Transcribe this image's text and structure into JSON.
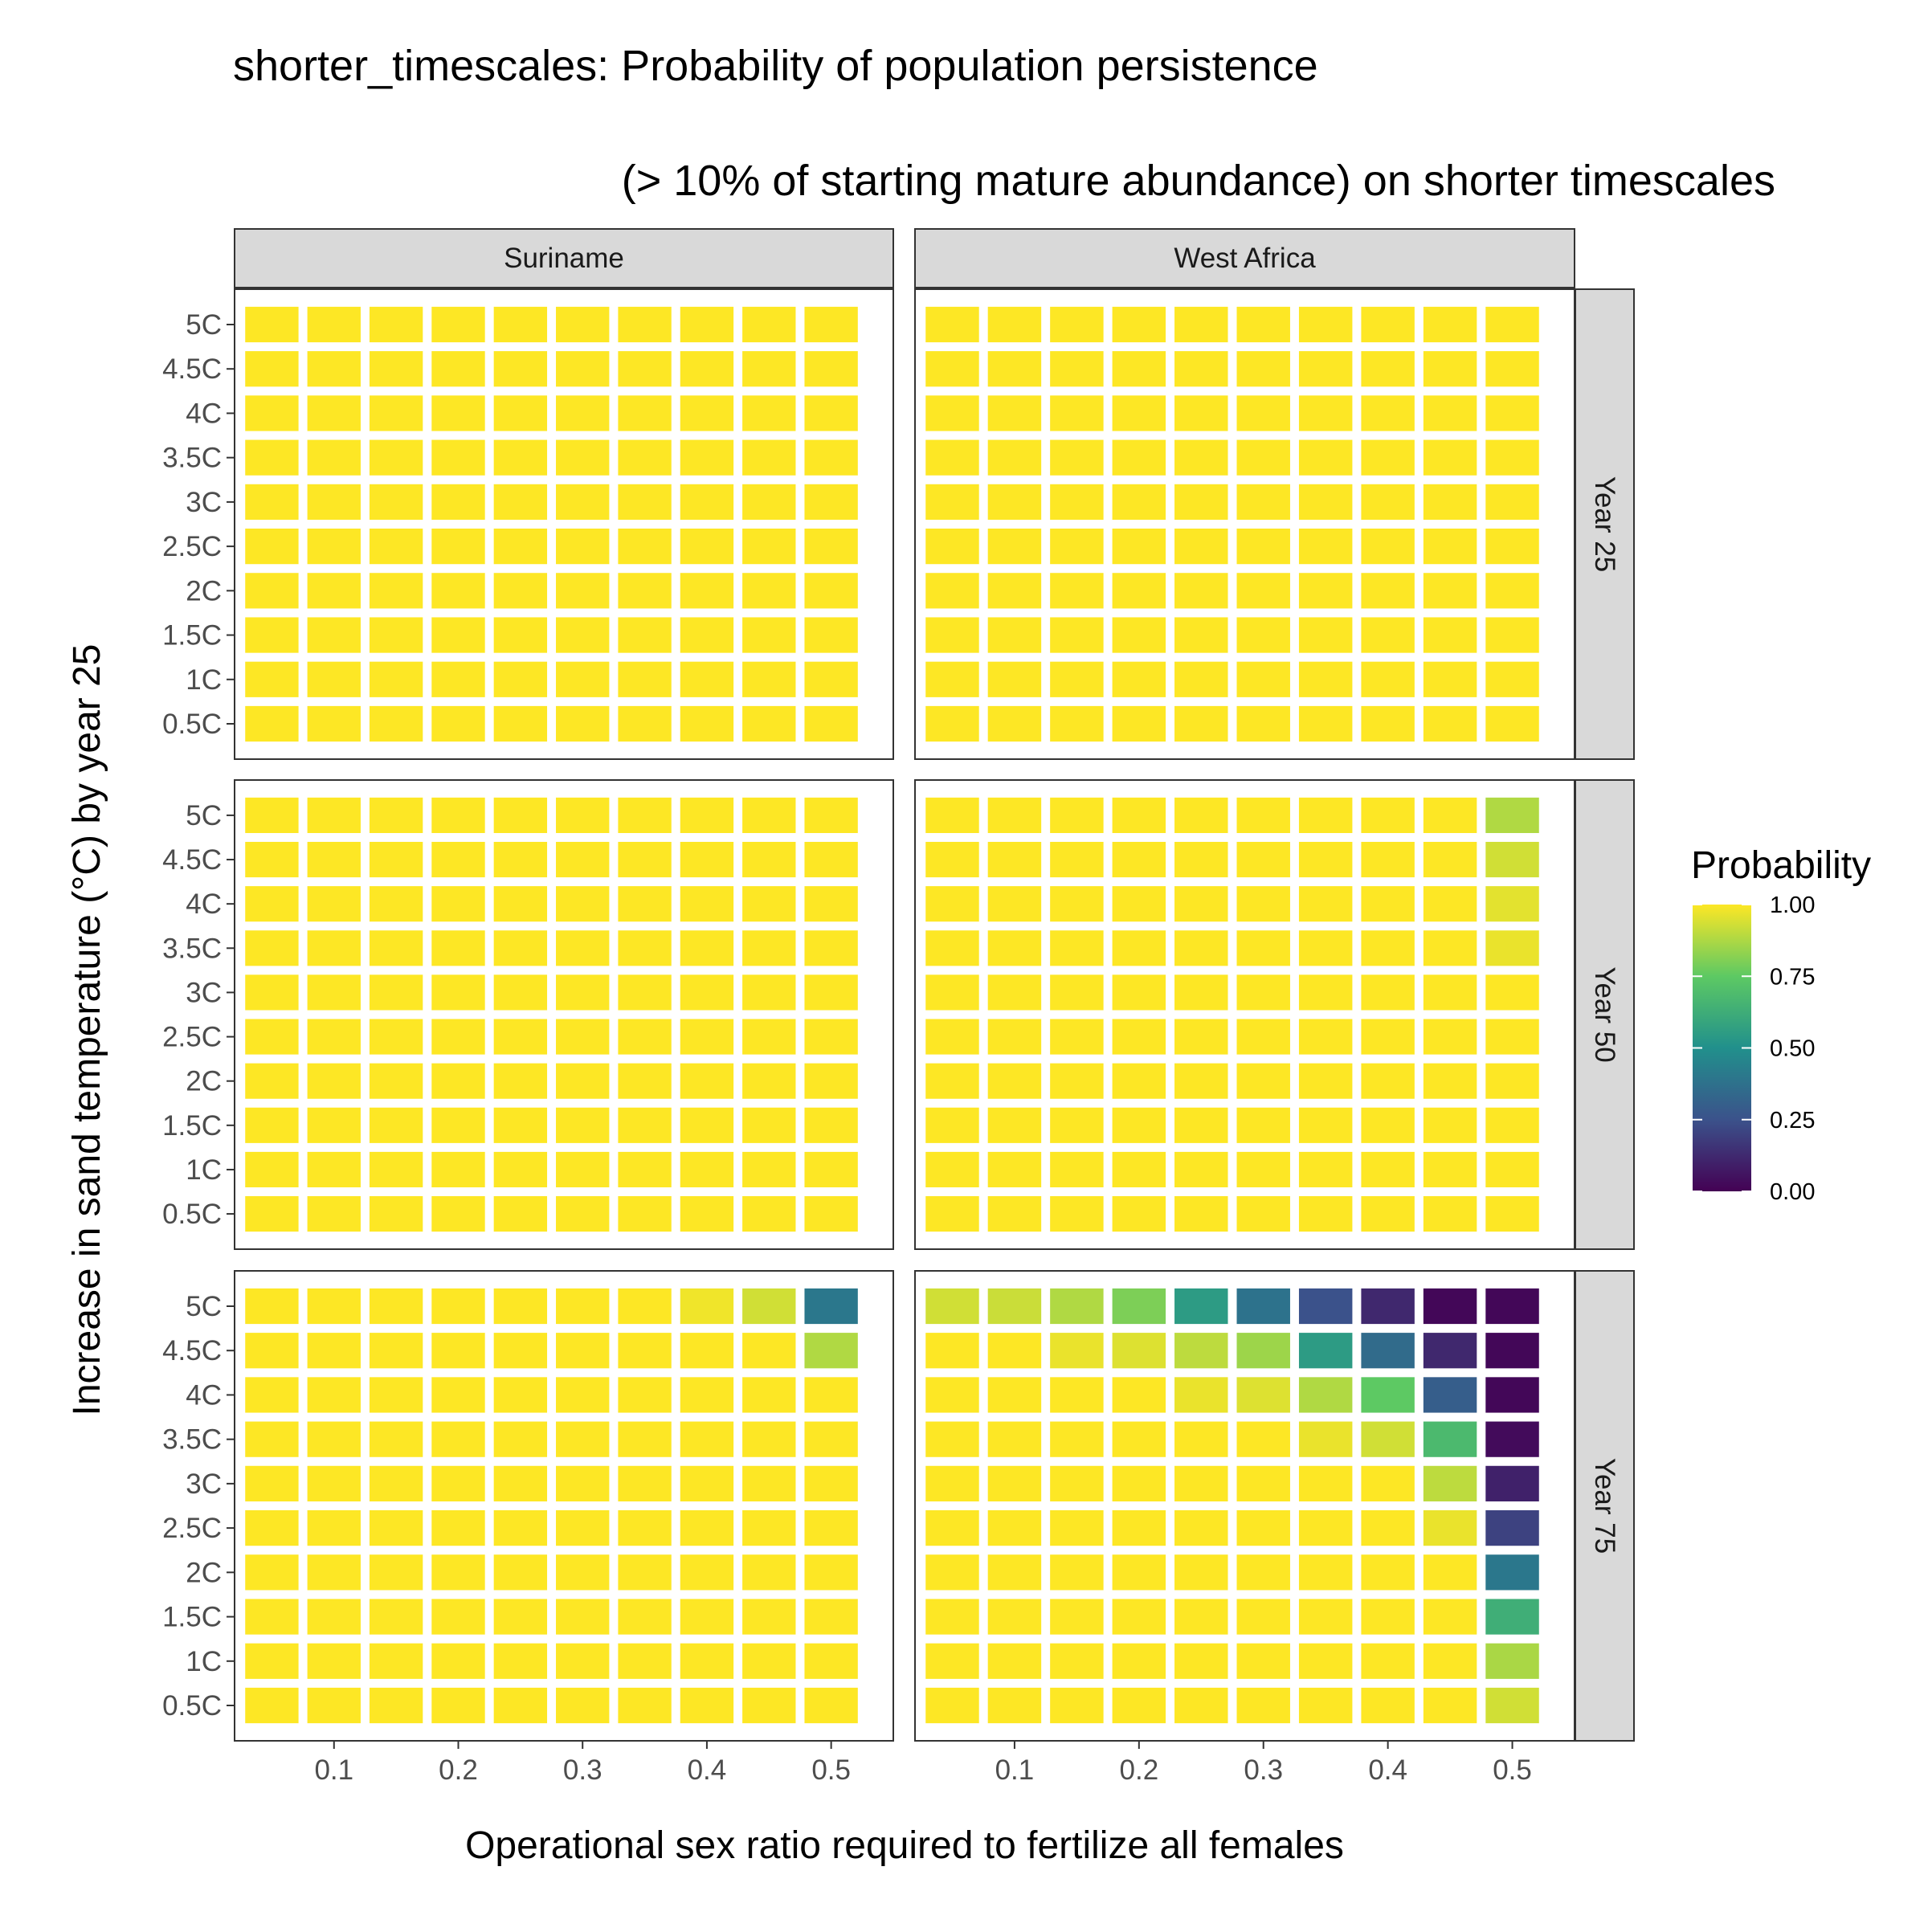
{
  "chart_data": {
    "type": "heatmap",
    "title": "shorter_timescales: Probability of population persistence",
    "subtitle": "(> 10% of starting mature abundance) on shorter timescales",
    "xlabel": "Operational sex ratio required to fertilize all females",
    "ylabel": "Increase in sand temperature (°C) by year 25",
    "x": [
      0.05,
      0.1,
      0.15,
      0.2,
      0.25,
      0.3,
      0.35,
      0.4,
      0.45,
      0.5
    ],
    "xlim": [
      0.02,
      0.55
    ],
    "x_ticks": [
      0.1,
      0.2,
      0.3,
      0.4,
      0.5
    ],
    "x_tick_labels": [
      "0.1",
      "0.2",
      "0.3",
      "0.4",
      "0.5"
    ],
    "y_categories": [
      "0.5C",
      "1C",
      "1.5C",
      "2C",
      "2.5C",
      "3C",
      "3.5C",
      "4C",
      "4.5C",
      "5C"
    ],
    "col_facets": [
      "Suriname",
      "West Africa"
    ],
    "row_facets": [
      "Year 25",
      "Year 50",
      "Year 75"
    ],
    "legend": {
      "title": "Probability",
      "position": "right",
      "ticks": [
        1.0,
        0.75,
        0.5,
        0.25,
        0.0
      ],
      "tick_labels": [
        "1.00",
        "0.75",
        "0.50",
        "0.25",
        "0.00"
      ],
      "palette": "viridis",
      "colors": [
        "#440154",
        "#3b528b",
        "#21908c",
        "#5dc963",
        "#fde725"
      ]
    },
    "panels": [
      {
        "row": "Year 25",
        "col": "Suriname",
        "values": [
          [
            1,
            1,
            1,
            1,
            1,
            1,
            1,
            1,
            1,
            1
          ],
          [
            1,
            1,
            1,
            1,
            1,
            1,
            1,
            1,
            1,
            1
          ],
          [
            1,
            1,
            1,
            1,
            1,
            1,
            1,
            1,
            1,
            1
          ],
          [
            1,
            1,
            1,
            1,
            1,
            1,
            1,
            1,
            1,
            1
          ],
          [
            1,
            1,
            1,
            1,
            1,
            1,
            1,
            1,
            1,
            1
          ],
          [
            1,
            1,
            1,
            1,
            1,
            1,
            1,
            1,
            1,
            1
          ],
          [
            1,
            1,
            1,
            1,
            1,
            1,
            1,
            1,
            1,
            1
          ],
          [
            1,
            1,
            1,
            1,
            1,
            1,
            1,
            1,
            1,
            1
          ],
          [
            1,
            1,
            1,
            1,
            1,
            1,
            1,
            1,
            1,
            1
          ],
          [
            1,
            1,
            1,
            1,
            1,
            1,
            1,
            1,
            1,
            1
          ]
        ]
      },
      {
        "row": "Year 25",
        "col": "West Africa",
        "values": [
          [
            1,
            1,
            1,
            1,
            1,
            1,
            1,
            1,
            1,
            1
          ],
          [
            1,
            1,
            1,
            1,
            1,
            1,
            1,
            1,
            1,
            1
          ],
          [
            1,
            1,
            1,
            1,
            1,
            1,
            1,
            1,
            1,
            1
          ],
          [
            1,
            1,
            1,
            1,
            1,
            1,
            1,
            1,
            1,
            1
          ],
          [
            1,
            1,
            1,
            1,
            1,
            1,
            1,
            1,
            1,
            1
          ],
          [
            1,
            1,
            1,
            1,
            1,
            1,
            1,
            1,
            1,
            1
          ],
          [
            1,
            1,
            1,
            1,
            1,
            1,
            1,
            1,
            1,
            1
          ],
          [
            1,
            1,
            1,
            1,
            1,
            1,
            1,
            1,
            1,
            1
          ],
          [
            1,
            1,
            1,
            1,
            1,
            1,
            1,
            1,
            1,
            1
          ],
          [
            1,
            1,
            1,
            1,
            1,
            1,
            1,
            1,
            1,
            1
          ]
        ]
      },
      {
        "row": "Year 50",
        "col": "Suriname",
        "values": [
          [
            1,
            1,
            1,
            1,
            1,
            1,
            1,
            1,
            1,
            1
          ],
          [
            1,
            1,
            1,
            1,
            1,
            1,
            1,
            1,
            1,
            1
          ],
          [
            1,
            1,
            1,
            1,
            1,
            1,
            1,
            1,
            1,
            1
          ],
          [
            1,
            1,
            1,
            1,
            1,
            1,
            1,
            1,
            1,
            1
          ],
          [
            1,
            1,
            1,
            1,
            1,
            1,
            1,
            1,
            1,
            1
          ],
          [
            1,
            1,
            1,
            1,
            1,
            1,
            1,
            1,
            1,
            1
          ],
          [
            1,
            1,
            1,
            1,
            1,
            1,
            1,
            1,
            1,
            1
          ],
          [
            1,
            1,
            1,
            1,
            1,
            1,
            1,
            1,
            1,
            1
          ],
          [
            1,
            1,
            1,
            1,
            1,
            1,
            1,
            1,
            1,
            1
          ],
          [
            1,
            1,
            1,
            1,
            1,
            1,
            1,
            1,
            1,
            1
          ]
        ]
      },
      {
        "row": "Year 50",
        "col": "West Africa",
        "values": [
          [
            1,
            1,
            1,
            1,
            1,
            1,
            1,
            1,
            1,
            1
          ],
          [
            1,
            1,
            1,
            1,
            1,
            1,
            1,
            1,
            1,
            1
          ],
          [
            1,
            1,
            1,
            1,
            1,
            1,
            1,
            1,
            1,
            1
          ],
          [
            1,
            1,
            1,
            1,
            1,
            1,
            1,
            1,
            1,
            1
          ],
          [
            1,
            1,
            1,
            1,
            1,
            1,
            1,
            1,
            1,
            1
          ],
          [
            1,
            1,
            1,
            1,
            1,
            1,
            1,
            1,
            1,
            1
          ],
          [
            1,
            1,
            1,
            1,
            1,
            1,
            1,
            1,
            1,
            0.97
          ],
          [
            1,
            1,
            1,
            1,
            1,
            1,
            1,
            1,
            1,
            0.96
          ],
          [
            1,
            1,
            1,
            1,
            1,
            1,
            1,
            1,
            1,
            0.93
          ],
          [
            1,
            1,
            1,
            1,
            1,
            1,
            1,
            1,
            1,
            0.88
          ]
        ]
      },
      {
        "row": "Year 75",
        "col": "Suriname",
        "values": [
          [
            1,
            1,
            1,
            1,
            1,
            1,
            1,
            1,
            1,
            1
          ],
          [
            1,
            1,
            1,
            1,
            1,
            1,
            1,
            1,
            1,
            1
          ],
          [
            1,
            1,
            1,
            1,
            1,
            1,
            1,
            1,
            1,
            1
          ],
          [
            1,
            1,
            1,
            1,
            1,
            1,
            1,
            1,
            1,
            1
          ],
          [
            1,
            1,
            1,
            1,
            1,
            1,
            1,
            1,
            1,
            1
          ],
          [
            1,
            1,
            1,
            1,
            1,
            1,
            1,
            1,
            1,
            1
          ],
          [
            1,
            1,
            1,
            1,
            1,
            1,
            1,
            1,
            1,
            1
          ],
          [
            1,
            1,
            1,
            1,
            1,
            1,
            1,
            1,
            1,
            1
          ],
          [
            1,
            1,
            1,
            1,
            1,
            1,
            1,
            1,
            1,
            0.88
          ],
          [
            1,
            1,
            1,
            1,
            1,
            1,
            1,
            0.98,
            0.93,
            0.4
          ]
        ]
      },
      {
        "row": "Year 75",
        "col": "West Africa",
        "values": [
          [
            1,
            1,
            1,
            1,
            1,
            1,
            1,
            1,
            1,
            0.93
          ],
          [
            1,
            1,
            1,
            1,
            1,
            1,
            1,
            1,
            1,
            0.87
          ],
          [
            1,
            1,
            1,
            1,
            1,
            1,
            1,
            1,
            1,
            0.63
          ],
          [
            1,
            1,
            1,
            1,
            1,
            1,
            1,
            1,
            1,
            0.4
          ],
          [
            1,
            1,
            1,
            1,
            1,
            1,
            1,
            1,
            0.97,
            0.2
          ],
          [
            1,
            1,
            1,
            1,
            1,
            1,
            1,
            1,
            0.9,
            0.1
          ],
          [
            1,
            1,
            1,
            1,
            1,
            1,
            0.97,
            0.93,
            0.68,
            0.03
          ],
          [
            1,
            1,
            1,
            1,
            0.97,
            0.95,
            0.88,
            0.75,
            0.3,
            0.02
          ],
          [
            1,
            1,
            0.97,
            0.95,
            0.9,
            0.85,
            0.55,
            0.35,
            0.12,
            0.02
          ],
          [
            0.93,
            0.92,
            0.88,
            0.8,
            0.55,
            0.38,
            0.25,
            0.12,
            0.02,
            0.02
          ]
        ]
      }
    ]
  }
}
